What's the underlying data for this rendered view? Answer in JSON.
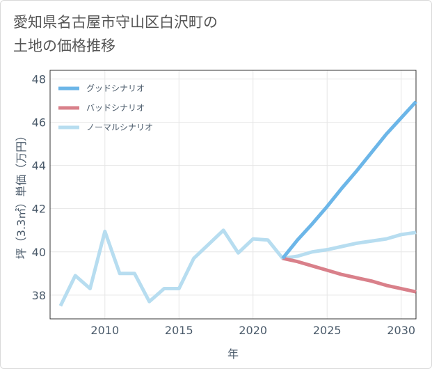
{
  "title": {
    "line1": "愛知県名古屋市守山区白沢町の",
    "line2": "土地の価格推移"
  },
  "chart_data": {
    "type": "line",
    "title": "愛知県名古屋市守山区白沢町の土地の価格推移",
    "xlabel": "年",
    "ylabel": "坪（3.3㎡）単価（万円）",
    "xlim": [
      2006.3,
      2031
    ],
    "ylim": [
      36.9,
      48.4
    ],
    "x_ticks": [
      2010,
      2015,
      2020,
      2025,
      2030
    ],
    "y_ticks": [
      38,
      40,
      42,
      44,
      46,
      48
    ],
    "grid": true,
    "legend_position": "top-left",
    "series": [
      {
        "name": "グッドシナリオ",
        "color": "#6cb6e8",
        "x": [
          2022,
          2023,
          2024,
          2025,
          2026,
          2027,
          2028,
          2029,
          2030,
          2031
        ],
        "y": [
          39.7,
          40.55,
          41.3,
          42.1,
          42.95,
          43.75,
          44.6,
          45.45,
          46.2,
          46.95
        ]
      },
      {
        "name": "バッドシナリオ",
        "color": "#d9808a",
        "x": [
          2022,
          2023,
          2024,
          2025,
          2026,
          2027,
          2028,
          2029,
          2030,
          2031
        ],
        "y": [
          39.7,
          39.55,
          39.35,
          39.15,
          38.95,
          38.8,
          38.65,
          38.45,
          38.3,
          38.15
        ]
      },
      {
        "name": "ノーマルシナリオ",
        "color": "#b7ddf0",
        "x": [
          2007,
          2008,
          2009,
          2010,
          2011,
          2012,
          2013,
          2014,
          2015,
          2016,
          2017,
          2018,
          2019,
          2020,
          2021,
          2022,
          2023,
          2024,
          2025,
          2026,
          2027,
          2028,
          2029,
          2030,
          2031
        ],
        "y": [
          37.5,
          38.9,
          38.3,
          40.95,
          39.0,
          39.0,
          37.7,
          38.3,
          38.3,
          39.7,
          40.35,
          41.0,
          39.95,
          40.6,
          40.55,
          39.7,
          39.8,
          40.0,
          40.1,
          40.25,
          40.4,
          40.5,
          40.6,
          40.8,
          40.9
        ]
      }
    ]
  }
}
